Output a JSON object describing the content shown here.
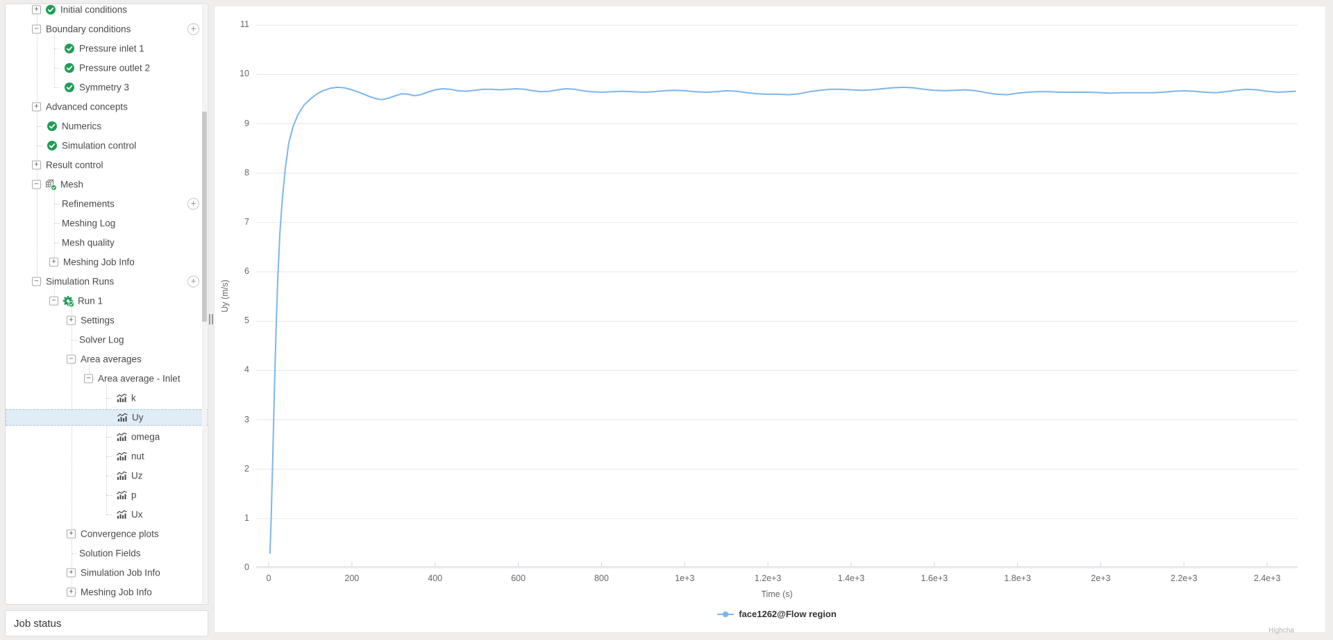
{
  "colors": {
    "accent_green": "#1f9d57",
    "selection_blue": "#e0edf7",
    "series_blue": "#7cb5ec",
    "grid_gray": "#e6e6e6",
    "axis_blue": "#ccd6eb"
  },
  "tree": {
    "items": [
      {
        "label": "Initial conditions",
        "depth": 0,
        "expand": "plus",
        "icon": "check",
        "selected": false,
        "add_button": false
      },
      {
        "label": "Boundary conditions",
        "depth": 0,
        "expand": "minus",
        "icon": "none",
        "selected": false,
        "add_button": true
      },
      {
        "label": "Pressure inlet 1",
        "depth": 1,
        "expand": "none",
        "icon": "check",
        "selected": false,
        "add_button": false
      },
      {
        "label": "Pressure outlet 2",
        "depth": 1,
        "expand": "none",
        "icon": "check",
        "selected": false,
        "add_button": false
      },
      {
        "label": "Symmetry 3",
        "depth": 1,
        "expand": "none",
        "icon": "check",
        "selected": false,
        "add_button": false
      },
      {
        "label": "Advanced concepts",
        "depth": 0,
        "expand": "plus",
        "icon": "none",
        "selected": false,
        "add_button": false
      },
      {
        "label": "Numerics",
        "depth": 0,
        "expand": "none",
        "icon": "check",
        "selected": false,
        "add_button": false
      },
      {
        "label": "Simulation control",
        "depth": 0,
        "expand": "none",
        "icon": "check",
        "selected": false,
        "add_button": false
      },
      {
        "label": "Result control",
        "depth": 0,
        "expand": "plus",
        "icon": "none",
        "selected": false,
        "add_button": false
      },
      {
        "label": "Mesh",
        "depth": 0,
        "expand": "minus",
        "icon": "mesh",
        "selected": false,
        "add_button": false
      },
      {
        "label": "Refinements",
        "depth": 1,
        "expand": "none",
        "icon": "none",
        "selected": false,
        "add_button": true
      },
      {
        "label": "Meshing Log",
        "depth": 1,
        "expand": "none",
        "icon": "none",
        "selected": false,
        "add_button": false
      },
      {
        "label": "Mesh quality",
        "depth": 1,
        "expand": "none",
        "icon": "none",
        "selected": false,
        "add_button": false
      },
      {
        "label": "Meshing Job Info",
        "depth": 1,
        "expand": "plus",
        "icon": "none",
        "selected": false,
        "add_button": false
      },
      {
        "label": "Simulation Runs",
        "depth": 0,
        "expand": "minus",
        "icon": "none",
        "selected": false,
        "add_button": true
      },
      {
        "label": "Run 1",
        "depth": 1,
        "expand": "minus",
        "icon": "gears",
        "selected": false,
        "add_button": false
      },
      {
        "label": "Settings",
        "depth": 2,
        "expand": "plus",
        "icon": "none",
        "selected": false,
        "add_button": false
      },
      {
        "label": "Solver Log",
        "depth": 2,
        "expand": "none",
        "icon": "none",
        "selected": false,
        "add_button": false
      },
      {
        "label": "Area averages",
        "depth": 2,
        "expand": "minus",
        "icon": "none",
        "selected": false,
        "add_button": false
      },
      {
        "label": "Area average - Inlet",
        "depth": 3,
        "expand": "minus",
        "icon": "none",
        "selected": false,
        "add_button": false
      },
      {
        "label": "k",
        "depth": 4,
        "expand": "none",
        "icon": "chart",
        "selected": false,
        "add_button": false
      },
      {
        "label": "Uy",
        "depth": 4,
        "expand": "none",
        "icon": "chart",
        "selected": true,
        "add_button": false
      },
      {
        "label": "omega",
        "depth": 4,
        "expand": "none",
        "icon": "chart",
        "selected": false,
        "add_button": false
      },
      {
        "label": "nut",
        "depth": 4,
        "expand": "none",
        "icon": "chart",
        "selected": false,
        "add_button": false
      },
      {
        "label": "Uz",
        "depth": 4,
        "expand": "none",
        "icon": "chart",
        "selected": false,
        "add_button": false
      },
      {
        "label": "p",
        "depth": 4,
        "expand": "none",
        "icon": "chart",
        "selected": false,
        "add_button": false
      },
      {
        "label": "Ux",
        "depth": 4,
        "expand": "none",
        "icon": "chart",
        "selected": false,
        "add_button": false
      },
      {
        "label": "Convergence plots",
        "depth": 2,
        "expand": "plus",
        "icon": "none",
        "selected": false,
        "add_button": false
      },
      {
        "label": "Solution Fields",
        "depth": 2,
        "expand": "none",
        "icon": "none",
        "selected": false,
        "add_button": false
      },
      {
        "label": "Simulation Job Info",
        "depth": 2,
        "expand": "plus",
        "icon": "none",
        "selected": false,
        "add_button": false
      },
      {
        "label": "Meshing Job Info",
        "depth": 2,
        "expand": "plus",
        "icon": "none",
        "selected": false,
        "add_button": false
      }
    ]
  },
  "job_status": {
    "label": "Job status"
  },
  "chart_data": {
    "type": "line",
    "title": "",
    "xlabel": "Time (s)",
    "ylabel": "Uy (m/s)",
    "xlim": [
      -30,
      2473
    ],
    "ylim": [
      0,
      11
    ],
    "grid": "horizontal",
    "legend_position": "bottom-center",
    "credits": "Highcha",
    "x_ticks": [
      0,
      200,
      400,
      600,
      800,
      1000,
      1200,
      1400,
      1600,
      1800,
      2000,
      2200,
      2400
    ],
    "x_tick_labels": [
      "0",
      "200",
      "400",
      "600",
      "800",
      "1e+3",
      "1.2e+3",
      "1.4e+3",
      "1.6e+3",
      "1.8e+3",
      "2e+3",
      "2.2e+3",
      "2.4e+3"
    ],
    "y_ticks": [
      "0",
      "1",
      "2",
      "3",
      "4",
      "5",
      "6",
      "7",
      "8",
      "9",
      "10",
      "11"
    ],
    "series": [
      {
        "name": "face1262@Flow region",
        "color": "#7cb5ec",
        "points": [
          [
            3,
            0.3
          ],
          [
            6,
            1.0
          ],
          [
            10,
            2.3
          ],
          [
            14,
            3.7
          ],
          [
            18,
            4.9
          ],
          [
            22,
            5.9
          ],
          [
            27,
            6.8
          ],
          [
            33,
            7.5
          ],
          [
            40,
            8.1
          ],
          [
            48,
            8.6
          ],
          [
            58,
            8.93
          ],
          [
            70,
            9.18
          ],
          [
            85,
            9.38
          ],
          [
            100,
            9.5
          ],
          [
            115,
            9.6
          ],
          [
            130,
            9.67
          ],
          [
            148,
            9.72
          ],
          [
            165,
            9.74
          ],
          [
            182,
            9.73
          ],
          [
            200,
            9.69
          ],
          [
            220,
            9.63
          ],
          [
            240,
            9.56
          ],
          [
            258,
            9.51
          ],
          [
            272,
            9.49
          ],
          [
            288,
            9.52
          ],
          [
            305,
            9.57
          ],
          [
            320,
            9.61
          ],
          [
            335,
            9.6
          ],
          [
            350,
            9.57
          ],
          [
            365,
            9.59
          ],
          [
            382,
            9.64
          ],
          [
            400,
            9.69
          ],
          [
            418,
            9.71
          ],
          [
            436,
            9.7
          ],
          [
            455,
            9.67
          ],
          [
            475,
            9.66
          ],
          [
            495,
            9.68
          ],
          [
            515,
            9.7
          ],
          [
            535,
            9.7
          ],
          [
            555,
            9.69
          ],
          [
            575,
            9.7
          ],
          [
            595,
            9.71
          ],
          [
            615,
            9.7
          ],
          [
            635,
            9.67
          ],
          [
            655,
            9.65
          ],
          [
            675,
            9.66
          ],
          [
            695,
            9.69
          ],
          [
            715,
            9.71
          ],
          [
            735,
            9.7
          ],
          [
            755,
            9.67
          ],
          [
            775,
            9.65
          ],
          [
            800,
            9.64
          ],
          [
            825,
            9.65
          ],
          [
            850,
            9.66
          ],
          [
            875,
            9.65
          ],
          [
            900,
            9.64
          ],
          [
            925,
            9.65
          ],
          [
            950,
            9.67
          ],
          [
            975,
            9.68
          ],
          [
            1000,
            9.67
          ],
          [
            1025,
            9.65
          ],
          [
            1050,
            9.64
          ],
          [
            1075,
            9.65
          ],
          [
            1100,
            9.67
          ],
          [
            1125,
            9.66
          ],
          [
            1150,
            9.63
          ],
          [
            1175,
            9.61
          ],
          [
            1200,
            9.6
          ],
          [
            1225,
            9.6
          ],
          [
            1250,
            9.59
          ],
          [
            1275,
            9.61
          ],
          [
            1300,
            9.65
          ],
          [
            1325,
            9.68
          ],
          [
            1350,
            9.7
          ],
          [
            1375,
            9.7
          ],
          [
            1400,
            9.69
          ],
          [
            1425,
            9.68
          ],
          [
            1450,
            9.69
          ],
          [
            1475,
            9.71
          ],
          [
            1500,
            9.73
          ],
          [
            1525,
            9.74
          ],
          [
            1550,
            9.73
          ],
          [
            1575,
            9.7
          ],
          [
            1600,
            9.68
          ],
          [
            1625,
            9.67
          ],
          [
            1650,
            9.68
          ],
          [
            1675,
            9.69
          ],
          [
            1700,
            9.67
          ],
          [
            1725,
            9.63
          ],
          [
            1750,
            9.6
          ],
          [
            1775,
            9.59
          ],
          [
            1800,
            9.62
          ],
          [
            1825,
            9.64
          ],
          [
            1850,
            9.65
          ],
          [
            1875,
            9.65
          ],
          [
            1900,
            9.64
          ],
          [
            1925,
            9.64
          ],
          [
            1950,
            9.64
          ],
          [
            1975,
            9.64
          ],
          [
            2000,
            9.63
          ],
          [
            2025,
            9.62
          ],
          [
            2050,
            9.63
          ],
          [
            2075,
            9.63
          ],
          [
            2100,
            9.63
          ],
          [
            2125,
            9.63
          ],
          [
            2150,
            9.64
          ],
          [
            2175,
            9.66
          ],
          [
            2200,
            9.67
          ],
          [
            2225,
            9.66
          ],
          [
            2250,
            9.64
          ],
          [
            2275,
            9.63
          ],
          [
            2300,
            9.65
          ],
          [
            2325,
            9.68
          ],
          [
            2350,
            9.7
          ],
          [
            2375,
            9.69
          ],
          [
            2400,
            9.66
          ],
          [
            2425,
            9.64
          ],
          [
            2450,
            9.65
          ],
          [
            2468,
            9.66
          ]
        ]
      }
    ]
  }
}
